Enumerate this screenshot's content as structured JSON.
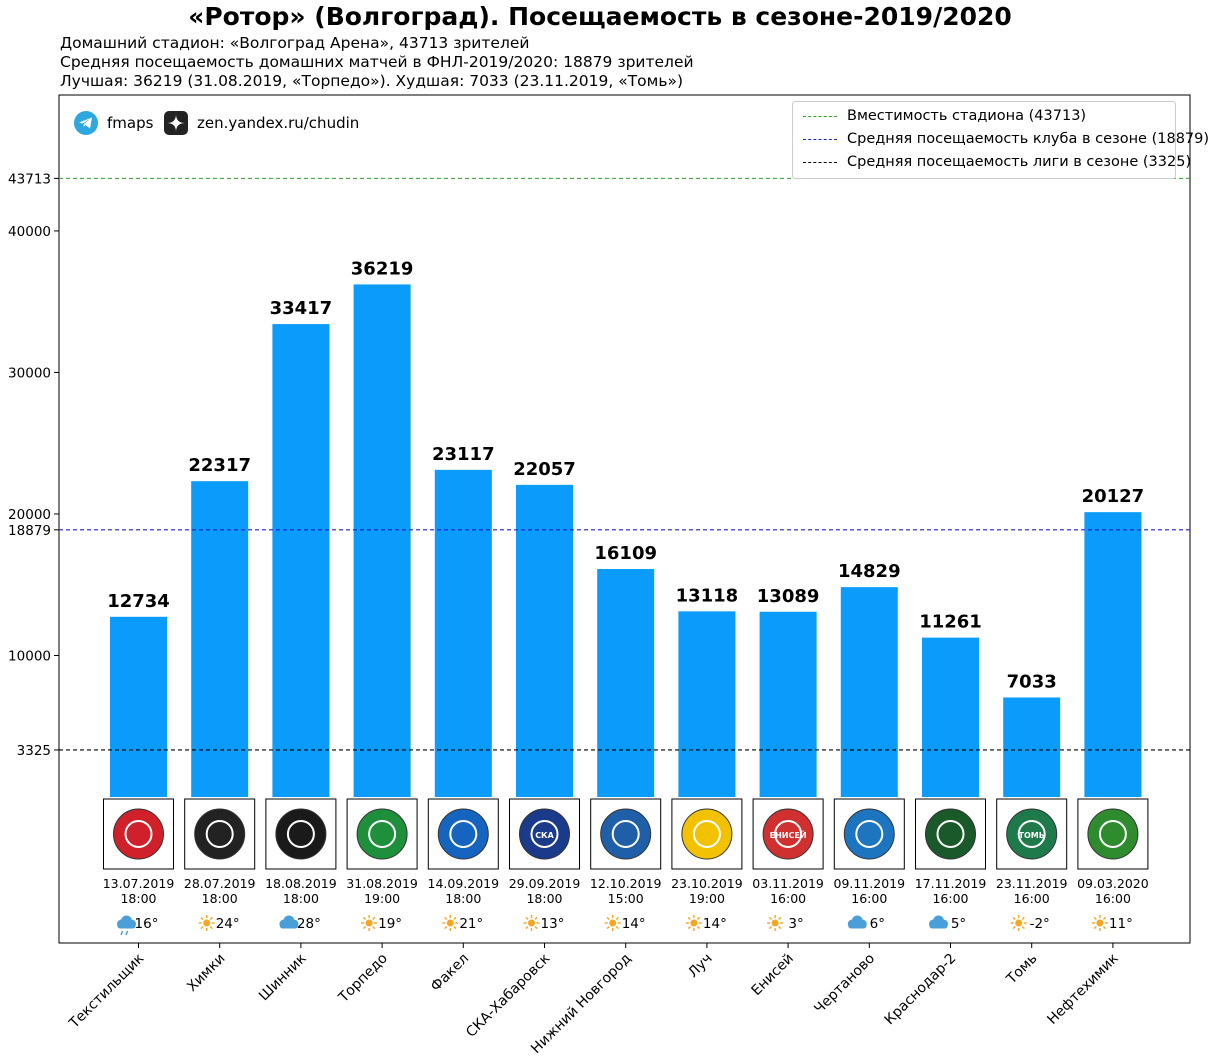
{
  "header": {
    "title": "«Ротор» (Волгоград). Посещаемость в сезоне-2019/2020",
    "line1": "Домашний стадион: «Волгоград Арена», 43713 зрителей",
    "line2": "Средняя посещаемость домашних матчей в ФНЛ-2019/2020: 18879 зрителей",
    "line3": "Лучшая: 36219 (31.08.2019, «Торпедо»). Худшая: 7033 (23.11.2019, «Томь»)"
  },
  "social": {
    "telegram": {
      "icon": "telegram-icon",
      "label": "fmaps"
    },
    "zen": {
      "icon": "zen-icon",
      "label": "zen.yandex.ru/chudin"
    }
  },
  "legend": {
    "capacity": "Вместимость стадиона (43713)",
    "club_avg": "Средняя посещаемость клуба в сезоне (18879)",
    "league_avg": "Средняя посещаемость лиги в сезоне (3325)"
  },
  "colors": {
    "bar": "#0a9bfb",
    "capacity_line": "#2ca02c",
    "club_line": "#1f1fd0",
    "league_line": "#000000",
    "sun": "#f5a623",
    "cloud": "#4a9fd8"
  },
  "chart_data": {
    "type": "bar",
    "title": "«Ротор» (Волгоград). Посещаемость в сезоне-2019/2020",
    "xlabel": "",
    "ylabel": "",
    "ylim": [
      -13200,
      47600
    ],
    "yticks": [
      3325,
      10000,
      18879,
      20000,
      30000,
      40000,
      43713
    ],
    "ytick_labels": [
      "3325",
      "10000",
      "18879",
      "20000",
      "30000",
      "40000",
      "43713"
    ],
    "reference_lines": [
      {
        "name": "capacity",
        "value": 43713
      },
      {
        "name": "club_avg",
        "value": 18879
      },
      {
        "name": "league_avg",
        "value": 3325
      }
    ],
    "categories": [
      "Текстильщик",
      "Химки",
      "Шинник",
      "Торпедо",
      "Факел",
      "СКА-Хабаровск",
      "Нижний Новгород",
      "Луч",
      "Енисей",
      "Чертаново",
      "Краснодар-2",
      "Томь",
      "Нефтехимик"
    ],
    "values": [
      12734,
      22317,
      33417,
      36219,
      23117,
      22057,
      16109,
      13118,
      13089,
      14829,
      11261,
      7033,
      20127
    ],
    "value_labels": [
      "12734",
      "22317",
      "33417",
      "36219",
      "23117",
      "22057",
      "16109",
      "13118",
      "13089",
      "14829",
      "11261",
      "7033",
      "20127"
    ],
    "dates": [
      "13.07.2019",
      "28.07.2019",
      "18.08.2019",
      "31.08.2019",
      "14.09.2019",
      "29.09.2019",
      "12.10.2019",
      "23.10.2019",
      "03.11.2019",
      "09.11.2019",
      "17.11.2019",
      "23.11.2019",
      "09.03.2020"
    ],
    "times": [
      "18:00",
      "18:00",
      "18:00",
      "19:00",
      "18:00",
      "18:00",
      "15:00",
      "19:00",
      "16:00",
      "16:00",
      "16:00",
      "16:00",
      "16:00"
    ],
    "weather": [
      "rain",
      "sun",
      "cloud",
      "sun",
      "sun",
      "sun",
      "sun",
      "sun",
      "sun",
      "cloud",
      "cloud",
      "sun",
      "sun"
    ],
    "temps": [
      "16°",
      "24°",
      "28°",
      "19°",
      "21°",
      "13°",
      "14°",
      "14°",
      "3°",
      "6°",
      "5°",
      "-2°",
      "11°"
    ],
    "logo_colors": [
      "#d0202a",
      "#222222",
      "#1a1a1a",
      "#1e8f3a",
      "#1565c0",
      "#1a3a8a",
      "#1f5fa8",
      "#f2c200",
      "#d03030",
      "#1d75bf",
      "#1a5a2a",
      "#1e7a4a",
      "#2e8b2e"
    ],
    "logo_names": [
      "textilshchik-logo",
      "khimki-logo",
      "shinnik-logo",
      "torpedo-logo",
      "fakel-logo",
      "ska-logo",
      "nizhny-logo",
      "luch-logo",
      "enisey-logo",
      "chertanovo-logo",
      "krasnodar2-logo",
      "tom-logo",
      "neftekhimik-logo"
    ],
    "logo_text": [
      "",
      "",
      "",
      "",
      "",
      "СКА",
      "",
      "",
      "ЕНИСЕЙ",
      "",
      "",
      "ТОМЬ",
      ""
    ]
  }
}
